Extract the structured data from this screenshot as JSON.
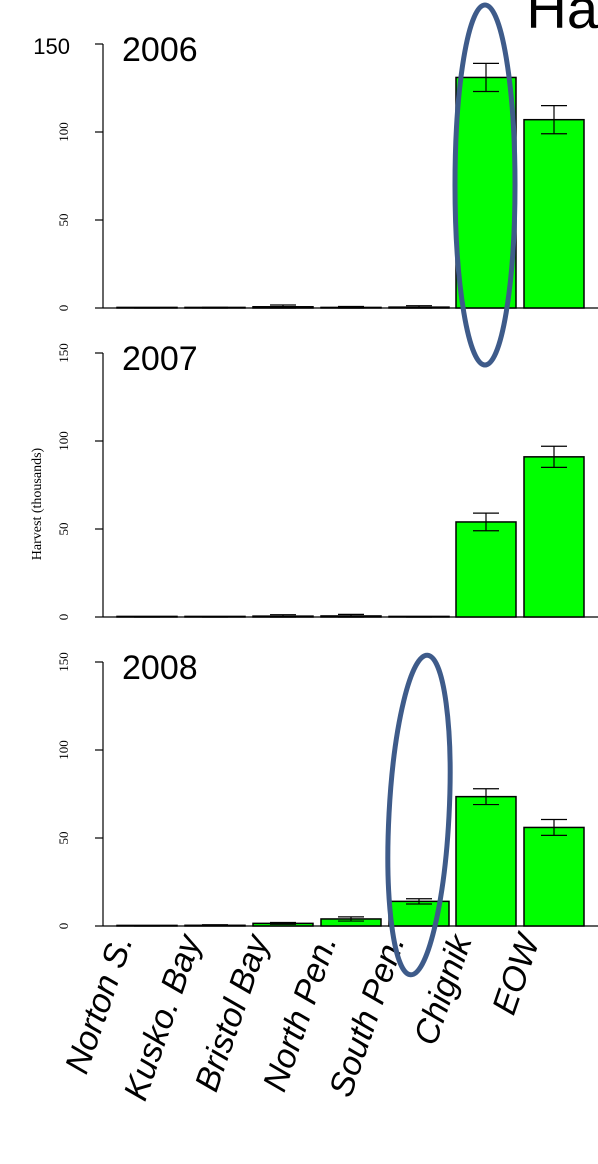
{
  "corner_text": "Ha",
  "ylabel": "Harvest (thousands)",
  "colors": {
    "bar_fill": "#00ff00",
    "bar_stroke": "#000000",
    "axis": "#000000",
    "highlight": "#3e5b8a"
  },
  "chart_data": [
    {
      "type": "bar",
      "title": "2006",
      "categories": [
        "Norton S.",
        "Kusko. Bay",
        "Bristol Bay",
        "North Pen.",
        "South Pen.",
        "Chignik",
        "EOW"
      ],
      "values": [
        0.1,
        0.2,
        0.7,
        0.3,
        0.5,
        131,
        107
      ],
      "errors": [
        0.1,
        0.2,
        1.0,
        0.6,
        0.8,
        8,
        8
      ],
      "ylim": [
        0,
        150
      ],
      "yticks": [
        0,
        50,
        100,
        150
      ],
      "yticklabels": [
        "0",
        "50",
        "100",
        "150"
      ],
      "highlight_category": "Chignik"
    },
    {
      "type": "bar",
      "title": "2007",
      "categories": [
        "Norton S.",
        "Kusko. Bay",
        "Bristol Bay",
        "North Pen.",
        "South Pen.",
        "Chignik",
        "EOW"
      ],
      "values": [
        0.05,
        0.1,
        0.5,
        0.6,
        0.1,
        54,
        91
      ],
      "errors": [
        0.05,
        0.1,
        0.8,
        0.9,
        0.1,
        5,
        6
      ],
      "ylim": [
        0,
        150
      ],
      "yticks": [
        0,
        50,
        100,
        150
      ],
      "yticklabels": [
        "0",
        "50",
        "100",
        "150"
      ],
      "ylabel": "Harvest (thousands)"
    },
    {
      "type": "bar",
      "title": "2008",
      "categories": [
        "Norton S.",
        "Kusko. Bay",
        "Bristol Bay",
        "North Pen.",
        "South Pen.",
        "Chignik",
        "EOW"
      ],
      "values": [
        0.1,
        0.4,
        1.5,
        4,
        14,
        73.5,
        56
      ],
      "errors": [
        0.1,
        0.3,
        0.5,
        1.2,
        1.5,
        4.5,
        4.5
      ],
      "ylim": [
        0,
        150
      ],
      "yticks": [
        0,
        50,
        100,
        150
      ],
      "yticklabels": [
        "0",
        "50",
        "100",
        "150"
      ],
      "highlight_category": "South Pen."
    }
  ]
}
